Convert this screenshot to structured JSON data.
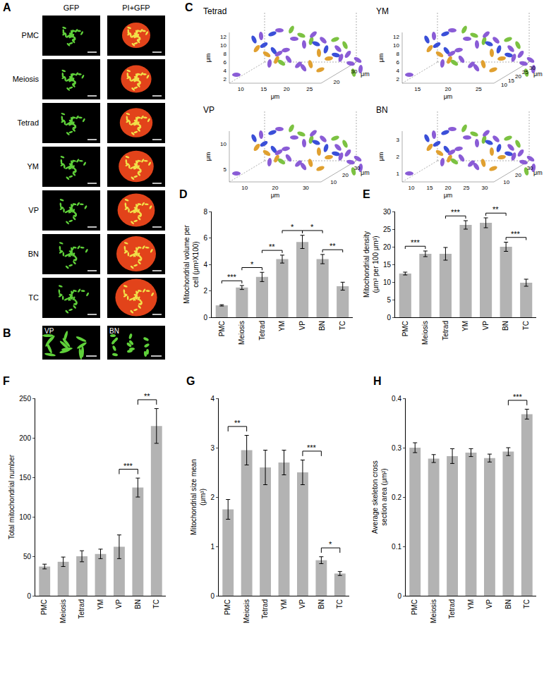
{
  "panel_A": {
    "label": "A",
    "columns": [
      "GFP",
      "PI+GFP"
    ],
    "rows": [
      "PMC",
      "Meiosis",
      "Tetrad",
      "YM",
      "VP",
      "BN",
      "TC"
    ]
  },
  "panel_B": {
    "label": "B",
    "images": [
      "VP",
      "BN"
    ]
  },
  "panel_C": {
    "label": "C",
    "unit": "μm",
    "plots": [
      {
        "title": "Tetrad",
        "zticks": [
          2,
          4,
          6,
          8,
          10,
          12
        ],
        "xticks": [
          10,
          15,
          20,
          25
        ],
        "yticks": [
          20,
          30
        ]
      },
      {
        "title": "YM",
        "zticks": [
          2,
          4,
          6,
          8,
          10,
          12
        ],
        "xticks": [
          15,
          20,
          25
        ],
        "yticks": [
          10,
          15,
          20,
          25,
          30
        ]
      },
      {
        "title": "VP",
        "zticks": [
          5,
          10
        ],
        "xticks": [
          10,
          20,
          30
        ],
        "yticks": [
          10,
          20,
          30
        ]
      },
      {
        "title": "BN",
        "zticks": [
          1,
          2,
          3
        ],
        "xticks": [
          10,
          15,
          20,
          25,
          30
        ],
        "yticks": [
          10,
          20,
          30
        ]
      }
    ]
  },
  "chart_data": [
    {
      "label": "D",
      "type": "bar",
      "categories": [
        "PMC",
        "Meiosis",
        "Tetrad",
        "YM",
        "VP",
        "BN",
        "TC"
      ],
      "values": [
        0.9,
        2.25,
        3.05,
        4.4,
        5.7,
        4.4,
        2.35
      ],
      "errors": [
        0.05,
        0.15,
        0.35,
        0.3,
        0.5,
        0.35,
        0.3
      ],
      "color": "#b3b3b3",
      "y_title": "Mitochondrial volume per\ncell (μm³X100)",
      "ylim": [
        0,
        8
      ],
      "yticks": [
        0,
        2,
        4,
        6,
        8
      ],
      "grid": false,
      "significance": [
        {
          "from": "PMC",
          "to": "Meiosis",
          "label": "***"
        },
        {
          "from": "Meiosis",
          "to": "Tetrad",
          "label": "*"
        },
        {
          "from": "Tetrad",
          "to": "YM",
          "label": "**"
        },
        {
          "from": "YM",
          "to": "VP",
          "label": "*"
        },
        {
          "from": "VP",
          "to": "BN",
          "label": "*"
        },
        {
          "from": "BN",
          "to": "TC",
          "label": "**"
        }
      ]
    },
    {
      "label": "E",
      "type": "bar",
      "categories": [
        "PMC",
        "Meiosis",
        "Tetrad",
        "YM",
        "VP",
        "BN",
        "TC"
      ],
      "values": [
        12.4,
        18,
        18,
        26.2,
        26.8,
        20,
        9.8
      ],
      "errors": [
        0.4,
        0.8,
        1.8,
        1.2,
        1.4,
        1.3,
        1.0
      ],
      "color": "#b3b3b3",
      "y_title": "Mitochondrial density\n(μm³ per 100 μm³)",
      "ylim": [
        0,
        30
      ],
      "yticks": [
        0,
        5,
        10,
        15,
        20,
        25,
        30
      ],
      "grid": false,
      "significance": [
        {
          "from": "PMC",
          "to": "Meiosis",
          "label": "***"
        },
        {
          "from": "Tetrad",
          "to": "YM",
          "label": "***"
        },
        {
          "from": "VP",
          "to": "BN",
          "label": "**"
        },
        {
          "from": "BN",
          "to": "TC",
          "label": "***"
        }
      ]
    },
    {
      "label": "F",
      "type": "bar",
      "categories": [
        "PMC",
        "Meiosis",
        "Tetrad",
        "YM",
        "VP",
        "BN",
        "TC"
      ],
      "values": [
        37,
        43,
        50,
        53,
        62,
        137,
        215
      ],
      "errors": [
        3,
        6,
        7,
        6,
        15,
        12,
        22
      ],
      "color": "#b3b3b3",
      "y_title": "Total mitochondrial number",
      "ylim": [
        0,
        250
      ],
      "yticks": [
        0,
        50,
        100,
        150,
        200,
        250
      ],
      "grid": false,
      "significance": [
        {
          "from": "VP",
          "to": "BN",
          "label": "***"
        },
        {
          "from": "BN",
          "to": "TC",
          "label": "**"
        }
      ]
    },
    {
      "label": "G",
      "type": "bar",
      "categories": [
        "PMC",
        "Meiosis",
        "Tetrad",
        "YM",
        "VP",
        "BN",
        "TC"
      ],
      "values": [
        1.75,
        2.95,
        2.6,
        2.7,
        2.5,
        0.72,
        0.45
      ],
      "errors": [
        0.2,
        0.3,
        0.35,
        0.25,
        0.25,
        0.07,
        0.04
      ],
      "color": "#b3b3b3",
      "y_title": "Mitochondrial size mean\n(μm³)",
      "ylim": [
        0,
        4
      ],
      "yticks": [
        0,
        1,
        2,
        3,
        4
      ],
      "grid": false,
      "significance": [
        {
          "from": "PMC",
          "to": "Meiosis",
          "label": "**"
        },
        {
          "from": "VP",
          "to": "BN",
          "label": "***"
        },
        {
          "from": "BN",
          "to": "TC",
          "label": "*"
        }
      ]
    },
    {
      "label": "H",
      "type": "bar",
      "categories": [
        "PMC",
        "Meiosis",
        "Tetrad",
        "YM",
        "VP",
        "BN",
        "TC"
      ],
      "values": [
        0.3,
        0.278,
        0.283,
        0.29,
        0.279,
        0.292,
        0.368
      ],
      "errors": [
        0.01,
        0.008,
        0.015,
        0.008,
        0.008,
        0.008,
        0.01
      ],
      "color": "#b3b3b3",
      "y_title": "Average skeleton cross\nsection area (μm²)",
      "ylim": [
        0,
        0.4
      ],
      "yticks": [
        0,
        0.1,
        0.2,
        0.3,
        0.4
      ],
      "grid": false,
      "significance": [
        {
          "from": "BN",
          "to": "TC",
          "label": "***"
        }
      ]
    }
  ]
}
